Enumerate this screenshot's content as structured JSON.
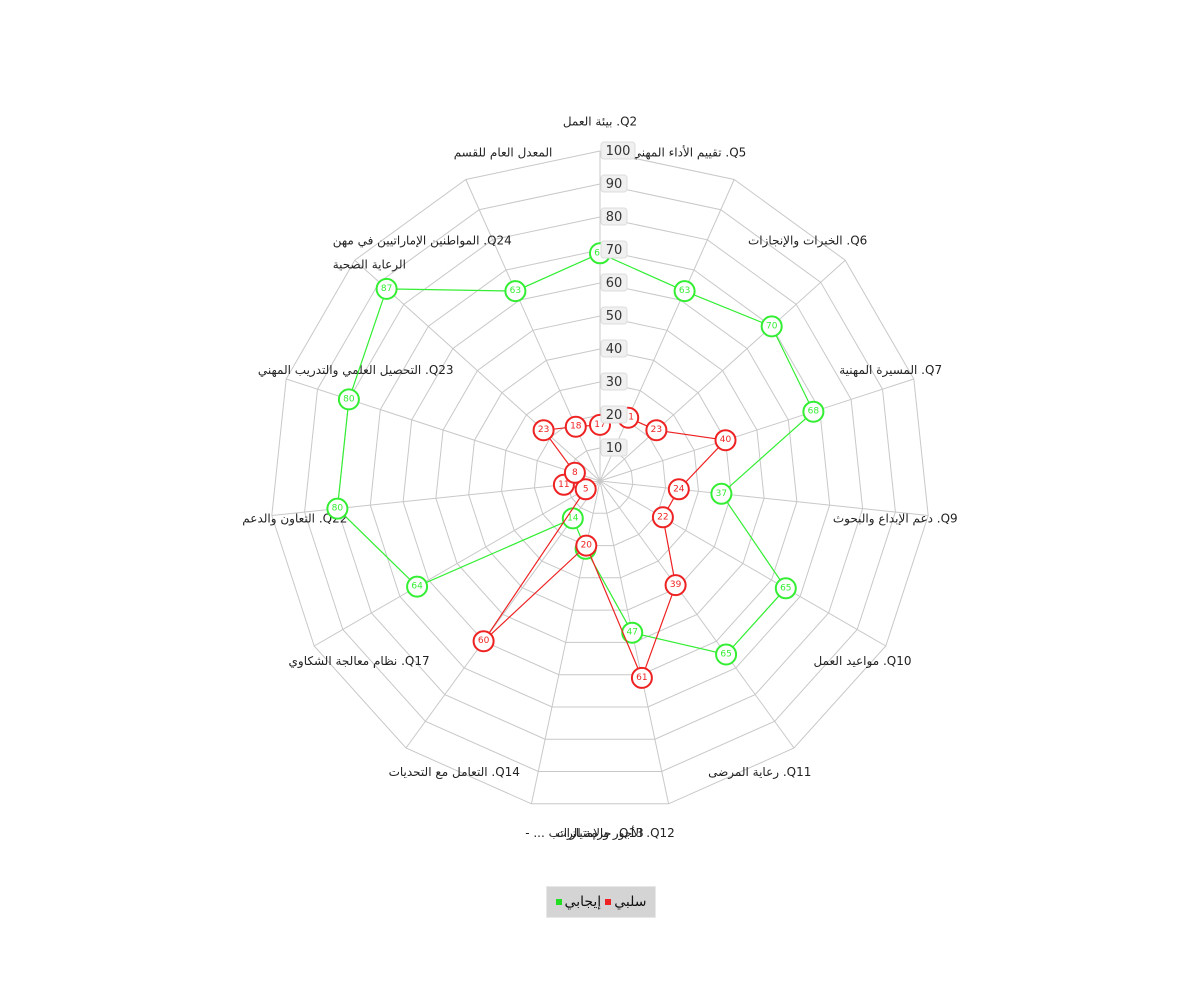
{
  "chart_data": {
    "type": "radar",
    "categories": [
      "Q2. بيئة العمل",
      "Q5. تقييم الأداء المهني",
      "Q6. الخبرات والإنجازات",
      "Q7. المسيرة المهنية",
      "Q9. دعم الإبداع والبحوث",
      "Q10. مواعيد العمل",
      "Q11. رعاية المرضى",
      "Q12. الأجور والإمتيازات",
      "Q13. حزمة الراتب ... -",
      "Q14. التعامل مع التحديات",
      "Q17. نظام معالجة الشكاوي",
      "Q22. التعاون والدعم",
      "Q23. التحصيل العلمي والتدريب المهني",
      "Q24. المواطنين الإماراتيين في مهن الرعاية الصحية",
      "المعدل العام للقسم"
    ],
    "category_lines": [
      [
        "Q2. بيئة العمل"
      ],
      [
        "Q5. تقييم الأداء المهني"
      ],
      [
        "Q6. الخبرات والإنجازات"
      ],
      [
        "Q7. المسيرة المهنية"
      ],
      [
        "Q9. دعم الإبداع والبحوث"
      ],
      [
        "Q10. مواعيد العمل"
      ],
      [
        "Q11. رعاية المرضى"
      ],
      [
        "Q12. الأجور والإمتيازات"
      ],
      [
        "Q13. حزمة الراتب ... -"
      ],
      [
        "Q14. التعامل مع التحديات"
      ],
      [
        "Q17. نظام معالجة الشكاوي"
      ],
      [
        "Q22. التعاون والدعم"
      ],
      [
        "Q23. التحصيل العلمي والتدريب المهني"
      ],
      [
        "Q24. المواطنين الإماراتيين في مهن",
        "الرعاية الصحية"
      ],
      [
        "المعدل العام للقسم"
      ]
    ],
    "ticks": [
      10,
      20,
      30,
      40,
      50,
      60,
      70,
      80,
      90,
      100
    ],
    "rmax": 100,
    "series": [
      {
        "name": "إيجابي",
        "color": "#33ee33",
        "values": [
          69,
          63,
          70,
          68,
          37,
          65,
          65,
          47,
          21,
          14,
          64,
          80,
          80,
          87,
          63
        ]
      },
      {
        "name": "سلبي",
        "color": "#ee2222",
        "values": [
          17,
          21,
          23,
          40,
          24,
          22,
          39,
          61,
          20,
          60,
          5,
          11,
          8,
          23,
          18
        ]
      }
    ],
    "legend_position": "bottom-center",
    "grid": true
  },
  "legend": {
    "positive_label": "إيجابي",
    "negative_label": "سلبي"
  }
}
